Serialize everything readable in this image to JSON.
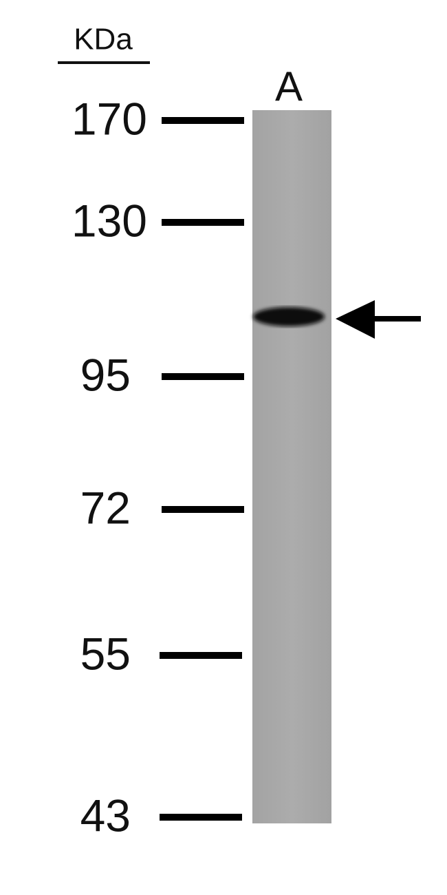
{
  "unit_label": "KDa",
  "lane_label": "A",
  "markers": [
    170,
    130,
    95,
    72,
    55,
    43
  ]
}
